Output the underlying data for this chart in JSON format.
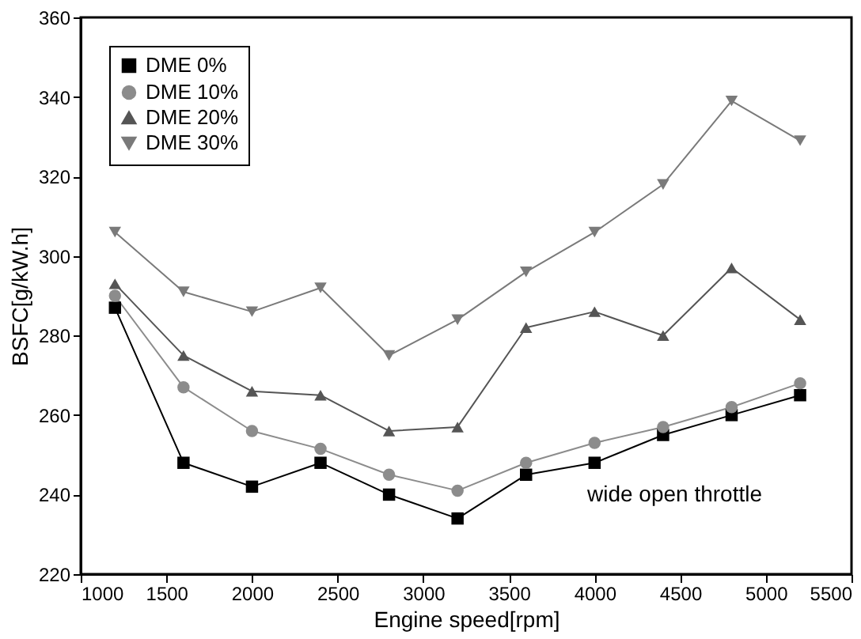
{
  "chart_data": {
    "type": "line",
    "xlabel": "Engine speed[rpm]",
    "ylabel": "BSFC[g/kW.h]",
    "x": [
      1200,
      1600,
      2000,
      2400,
      2800,
      3200,
      3600,
      4000,
      4400,
      4800,
      5200
    ],
    "series": [
      {
        "name": "DME 0%",
        "color": "#000000",
        "marker": "square",
        "values": [
          287,
          248,
          242,
          248,
          240,
          234,
          245,
          248,
          255,
          260,
          265
        ]
      },
      {
        "name": "DME 10%",
        "color": "#8c8c8c",
        "marker": "circle",
        "values": [
          290,
          267,
          256,
          251.5,
          245,
          241,
          248,
          253,
          257,
          262,
          268
        ]
      },
      {
        "name": "DME 20%",
        "color": "#555555",
        "marker": "triangle",
        "values": [
          293,
          275,
          266,
          265,
          256,
          257,
          282,
          286,
          280,
          297,
          284
        ]
      },
      {
        "name": "DME 30%",
        "color": "#7a7a7a",
        "marker": "triangle-down",
        "values": [
          306,
          291,
          286,
          292,
          275,
          284,
          296,
          306,
          318,
          339,
          329
        ]
      }
    ],
    "xlim": [
      1000,
      5500
    ],
    "xticks": [
      1000,
      1500,
      2000,
      2500,
      3000,
      3500,
      4000,
      4500,
      5000,
      5500
    ],
    "ylim": [
      220,
      360
    ],
    "yticks": [
      220,
      240,
      260,
      280,
      300,
      320,
      340,
      360
    ],
    "annotations": [
      "wide open throttle"
    ],
    "legend": "top left",
    "grid": false,
    "line_style": "solid"
  }
}
